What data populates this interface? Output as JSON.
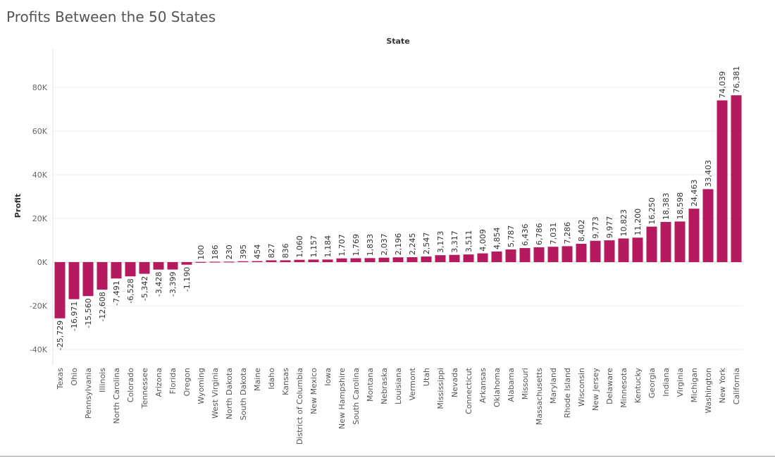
{
  "title": "Profits Between the 50 States",
  "chart_data": {
    "type": "bar",
    "title": "Profits Between the 50 States",
    "xlabel": "State",
    "ylabel": "Profit",
    "ylim": [
      -42000,
      88000
    ],
    "yticks": [
      -40000,
      -20000,
      0,
      20000,
      40000,
      60000,
      80000
    ],
    "ytick_labels": [
      "-40K",
      "-20K",
      "0K",
      "20K",
      "40K",
      "60K",
      "80K"
    ],
    "grid": true,
    "bar_color": "#b5195e",
    "categories": [
      "Texas",
      "Ohio",
      "Pennsylvania",
      "Illinois",
      "North Carolina",
      "Colorado",
      "Tennessee",
      "Arizona",
      "Florida",
      "Oregon",
      "Wyoming",
      "West Virginia",
      "North Dakota",
      "South Dakota",
      "Maine",
      "Idaho",
      "Kansas",
      "District of Columbia",
      "New Mexico",
      "Iowa",
      "New Hampshire",
      "South Carolina",
      "Montana",
      "Nebraska",
      "Louisiana",
      "Vermont",
      "Utah",
      "Mississippi",
      "Nevada",
      "Connecticut",
      "Arkansas",
      "Oklahoma",
      "Alabama",
      "Missouri",
      "Massachusetts",
      "Maryland",
      "Rhode Island",
      "Wisconsin",
      "New Jersey",
      "Delaware",
      "Minnesota",
      "Kentucky",
      "Georgia",
      "Indiana",
      "Virginia",
      "Michigan",
      "Washington",
      "New York",
      "California"
    ],
    "values": [
      -25729,
      -16971,
      -15560,
      -12608,
      -7491,
      -6528,
      -5342,
      -3428,
      -3399,
      -1190,
      100,
      186,
      230,
      395,
      454,
      827,
      836,
      1060,
      1157,
      1184,
      1707,
      1769,
      1833,
      2037,
      2196,
      2245,
      2547,
      3173,
      3317,
      3511,
      4009,
      4854,
      5787,
      6436,
      6786,
      7031,
      7286,
      8402,
      9773,
      9977,
      10823,
      11200,
      16250,
      18383,
      18598,
      24463,
      33403,
      74039,
      76381
    ],
    "value_labels": [
      "-25,729",
      "-16,971",
      "-15,560",
      "-12,608",
      "-7,491",
      "-6,528",
      "-5,342",
      "-3,428",
      "-3,399",
      "-1,190",
      "100",
      "186",
      "230",
      "395",
      "454",
      "827",
      "836",
      "1,060",
      "1,157",
      "1,184",
      "1,707",
      "1,769",
      "1,833",
      "2,037",
      "2,196",
      "2,245",
      "2,547",
      "3,173",
      "3,317",
      "3,511",
      "4,009",
      "4,854",
      "5,787",
      "6,436",
      "6,786",
      "7,031",
      "7,286",
      "8,402",
      "9,773",
      "9,977",
      "10,823",
      "11,200",
      "16,250",
      "18,383",
      "18,598",
      "24,463",
      "33,403",
      "74,039",
      "76,381"
    ]
  }
}
